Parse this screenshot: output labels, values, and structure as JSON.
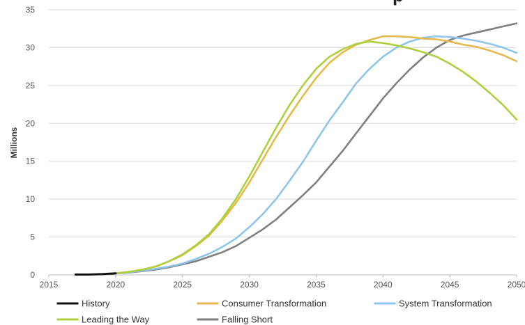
{
  "chart_data": {
    "type": "line",
    "title_fragment": "p",
    "ylabel": "Millions",
    "xlabel": "",
    "xlim": [
      2015,
      2050
    ],
    "ylim": [
      0,
      35
    ],
    "x_ticks": [
      "2015",
      "2020",
      "2025",
      "2030",
      "2035",
      "2040",
      "2045",
      "2050"
    ],
    "y_ticks": [
      "0",
      "5",
      "10",
      "15",
      "20",
      "25",
      "30",
      "35"
    ],
    "grid": "horizontal",
    "legend_position": "bottom",
    "series": [
      {
        "name": "History",
        "color": "#111111",
        "points": [
          [
            2017,
            0.05
          ],
          [
            2018,
            0.05
          ],
          [
            2019,
            0.1
          ],
          [
            2020,
            0.2
          ]
        ]
      },
      {
        "name": "Consumer Transformation",
        "color": "#e5b94a",
        "points": [
          [
            2020,
            0.2
          ],
          [
            2021,
            0.4
          ],
          [
            2022,
            0.7
          ],
          [
            2023,
            1.1
          ],
          [
            2024,
            1.8
          ],
          [
            2025,
            2.6
          ],
          [
            2026,
            3.8
          ],
          [
            2027,
            5.2
          ],
          [
            2028,
            7.2
          ],
          [
            2029,
            9.5
          ],
          [
            2030,
            12.2
          ],
          [
            2031,
            15.2
          ],
          [
            2032,
            18.2
          ],
          [
            2033,
            21.0
          ],
          [
            2034,
            23.6
          ],
          [
            2035,
            26.0
          ],
          [
            2036,
            28.0
          ],
          [
            2037,
            29.4
          ],
          [
            2038,
            30.4
          ],
          [
            2039,
            31.0
          ],
          [
            2040,
            31.5
          ],
          [
            2041,
            31.5
          ],
          [
            2042,
            31.4
          ],
          [
            2043,
            31.2
          ],
          [
            2044,
            31.1
          ],
          [
            2045,
            30.8
          ],
          [
            2046,
            30.4
          ],
          [
            2047,
            30.1
          ],
          [
            2048,
            29.6
          ],
          [
            2049,
            29.0
          ],
          [
            2050,
            28.2
          ]
        ]
      },
      {
        "name": "System Transformation",
        "color": "#8ec5ea",
        "points": [
          [
            2020,
            0.2
          ],
          [
            2021,
            0.35
          ],
          [
            2022,
            0.55
          ],
          [
            2023,
            0.8
          ],
          [
            2024,
            1.1
          ],
          [
            2025,
            1.5
          ],
          [
            2026,
            2.1
          ],
          [
            2027,
            2.8
          ],
          [
            2028,
            3.7
          ],
          [
            2029,
            4.8
          ],
          [
            2030,
            6.3
          ],
          [
            2031,
            8.0
          ],
          [
            2032,
            10.0
          ],
          [
            2033,
            12.4
          ],
          [
            2034,
            14.9
          ],
          [
            2035,
            17.7
          ],
          [
            2036,
            20.4
          ],
          [
            2037,
            22.8
          ],
          [
            2038,
            25.3
          ],
          [
            2039,
            27.2
          ],
          [
            2040,
            28.8
          ],
          [
            2041,
            30.0
          ],
          [
            2042,
            30.8
          ],
          [
            2043,
            31.3
          ],
          [
            2044,
            31.5
          ],
          [
            2045,
            31.4
          ],
          [
            2046,
            31.2
          ],
          [
            2047,
            30.9
          ],
          [
            2048,
            30.5
          ],
          [
            2049,
            30.0
          ],
          [
            2050,
            29.3
          ]
        ]
      },
      {
        "name": "Leading the Way",
        "color": "#aed03c",
        "points": [
          [
            2020,
            0.2
          ],
          [
            2021,
            0.4
          ],
          [
            2022,
            0.7
          ],
          [
            2023,
            1.1
          ],
          [
            2024,
            1.8
          ],
          [
            2025,
            2.7
          ],
          [
            2026,
            3.9
          ],
          [
            2027,
            5.4
          ],
          [
            2028,
            7.5
          ],
          [
            2029,
            10.0
          ],
          [
            2030,
            13.0
          ],
          [
            2031,
            16.2
          ],
          [
            2032,
            19.4
          ],
          [
            2033,
            22.4
          ],
          [
            2034,
            25.0
          ],
          [
            2035,
            27.2
          ],
          [
            2036,
            28.8
          ],
          [
            2037,
            29.8
          ],
          [
            2038,
            30.5
          ],
          [
            2039,
            30.8
          ],
          [
            2040,
            30.6
          ],
          [
            2041,
            30.3
          ],
          [
            2042,
            29.9
          ],
          [
            2043,
            29.4
          ],
          [
            2044,
            28.8
          ],
          [
            2045,
            27.9
          ],
          [
            2046,
            26.8
          ],
          [
            2047,
            25.5
          ],
          [
            2048,
            24.0
          ],
          [
            2049,
            22.4
          ],
          [
            2050,
            20.5
          ]
        ]
      },
      {
        "name": "Falling Short",
        "color": "#7f7f7f",
        "points": [
          [
            2020,
            0.2
          ],
          [
            2021,
            0.3
          ],
          [
            2022,
            0.5
          ],
          [
            2023,
            0.7
          ],
          [
            2024,
            1.0
          ],
          [
            2025,
            1.4
          ],
          [
            2026,
            1.8
          ],
          [
            2027,
            2.4
          ],
          [
            2028,
            3.0
          ],
          [
            2029,
            3.8
          ],
          [
            2030,
            4.9
          ],
          [
            2031,
            6.0
          ],
          [
            2032,
            7.3
          ],
          [
            2033,
            8.9
          ],
          [
            2034,
            10.5
          ],
          [
            2035,
            12.2
          ],
          [
            2036,
            14.3
          ],
          [
            2037,
            16.4
          ],
          [
            2038,
            18.7
          ],
          [
            2039,
            21.0
          ],
          [
            2040,
            23.3
          ],
          [
            2041,
            25.3
          ],
          [
            2042,
            27.1
          ],
          [
            2043,
            28.7
          ],
          [
            2044,
            30.0
          ],
          [
            2045,
            31.0
          ],
          [
            2046,
            31.6
          ],
          [
            2047,
            32.0
          ],
          [
            2048,
            32.4
          ],
          [
            2049,
            32.8
          ],
          [
            2050,
            33.2
          ]
        ]
      }
    ],
    "legend_order": [
      "History",
      "Consumer Transformation",
      "System Transformation",
      "Leading the Way",
      "Falling Short"
    ]
  }
}
